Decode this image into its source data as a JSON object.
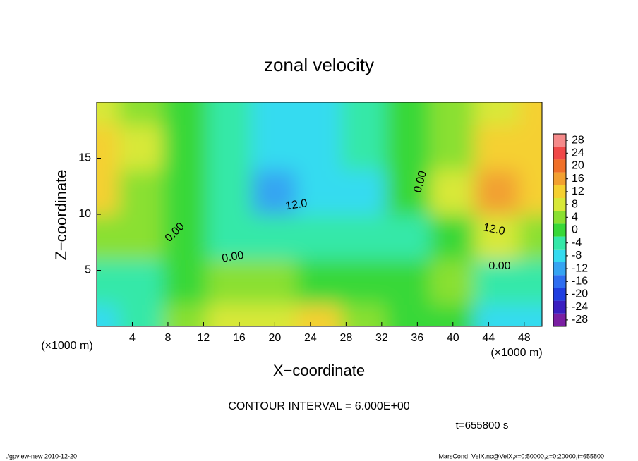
{
  "chart_data": {
    "type": "contour",
    "title": "zonal velocity",
    "x_label": "X−coordinate",
    "y_label": "Z−coordinate",
    "x_unit": "(×1000 m)",
    "y_unit": "(×1000 m)",
    "xlim": [
      0,
      50
    ],
    "ylim": [
      0,
      20
    ],
    "xticks": [
      4,
      8,
      12,
      16,
      20,
      24,
      28,
      32,
      36,
      40,
      44,
      48
    ],
    "yticks": [
      5,
      10,
      15
    ],
    "x": [
      0,
      5,
      10,
      15,
      20,
      25,
      30,
      35,
      40,
      45,
      50
    ],
    "z": [
      0,
      4,
      8,
      12,
      16,
      20
    ],
    "values": [
      [
        -8,
        -4,
        2,
        6,
        8,
        10,
        2,
        0,
        0,
        -8,
        -10
      ],
      [
        -6,
        -4,
        0,
        4,
        4,
        0,
        -2,
        -2,
        2,
        -4,
        -6
      ],
      [
        4,
        2,
        -2,
        -4,
        -4,
        -4,
        -4,
        -4,
        -2,
        8,
        4
      ],
      [
        10,
        4,
        0,
        -6,
        -12,
        -10,
        -8,
        -2,
        6,
        16,
        12
      ],
      [
        12,
        6,
        0,
        -6,
        -8,
        -8,
        -6,
        -2,
        4,
        10,
        12
      ],
      [
        8,
        4,
        0,
        -6,
        -8,
        -8,
        -6,
        0,
        4,
        8,
        10
      ]
    ],
    "clim": [
      -30,
      30
    ],
    "cticks": [
      28,
      24,
      20,
      16,
      12,
      8,
      4,
      0,
      -4,
      -8,
      -12,
      -16,
      -20,
      -24,
      -28
    ],
    "colors": [
      "#7a1fa2",
      "#3a1fc0",
      "#1f3ee0",
      "#2f6ef0",
      "#36a4f2",
      "#35dbf0",
      "#34e8a8",
      "#38d838",
      "#8ae030",
      "#d8e838",
      "#f5d030",
      "#f2a030",
      "#f07028",
      "#f04848",
      "#f58a8a"
    ],
    "contour_labels": [
      "12.0",
      "12.0",
      "0.00",
      "0.00",
      "0.00",
      "0.00"
    ],
    "contour_interval": "CONTOUR INTERVAL = 6.000E+00",
    "time_label": "t=655800 s",
    "footer_left": "./gpview-new  2010-12-20",
    "footer_right": "MarsCond_VelX.nc@VelX,x=0:50000,z=0:20000,t=655800"
  }
}
